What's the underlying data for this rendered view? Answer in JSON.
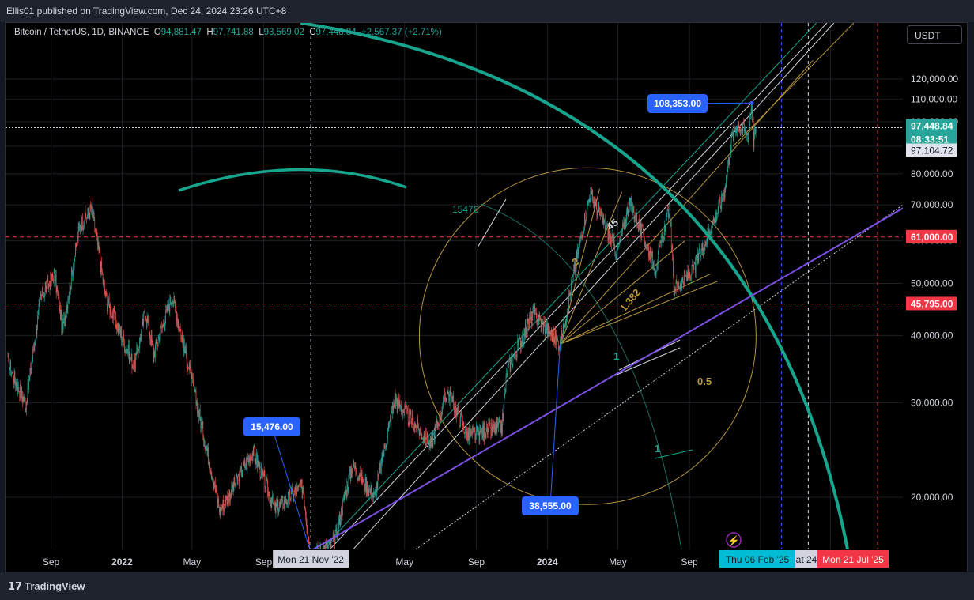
{
  "header": {
    "publish_line": "Ellis01 published on TradingView.com, Dec 24, 2024 23:26 UTC+8"
  },
  "footer": {
    "brand": "TradingView"
  },
  "legend": {
    "symbol": "Bitcoin / TetherUS, 1D, BINANCE",
    "o_label": "O",
    "o": "94,881.47",
    "h_label": "H",
    "h": "97,741.88",
    "l_label": "L",
    "l": "93,569.02",
    "c_label": "C",
    "c": "97,448.84",
    "change": "+2,567.37 (+2.71%)"
  },
  "currency_button": "USDT",
  "colors": {
    "up": "#26a69a",
    "down": "#ef5350",
    "teal_drawing": "#17a58e",
    "purple_line": "#7b4fe0",
    "gold": "#b8953c",
    "callout_blue": "#2962ff",
    "red_level": "#f23645",
    "cyan_date": "#00bcd4"
  },
  "chart_data": {
    "type": "candlestick",
    "timeframe": "1D",
    "y_axis": {
      "scale": "log",
      "ticks": [
        "120,000.00",
        "110,000.00",
        "100,000.00",
        "90,000.00",
        "80,000.00",
        "70,000.00",
        "60,000.00",
        "50,000.00",
        "40,000.00",
        "30,000.00",
        "20,000.00"
      ],
      "range": [
        17000,
        128000
      ]
    },
    "x_axis": {
      "ticks": [
        "Sep",
        "2022",
        "May",
        "Sep",
        "May",
        "Sep",
        "2024",
        "May",
        "Sep",
        "Jan",
        "May"
      ],
      "range": [
        "2021-06-19",
        "2025-09-01"
      ]
    },
    "price_path": [
      [
        "2021-06-19",
        35500
      ],
      [
        "2021-07-20",
        29800
      ],
      [
        "2021-08-14",
        47000
      ],
      [
        "2021-09-07",
        52000
      ],
      [
        "2021-09-21",
        41000
      ],
      [
        "2021-10-20",
        64000
      ],
      [
        "2021-11-10",
        69000
      ],
      [
        "2021-12-04",
        47000
      ],
      [
        "2022-01-22",
        35000
      ],
      [
        "2022-02-10",
        44500
      ],
      [
        "2022-02-24",
        37000
      ],
      [
        "2022-03-28",
        47500
      ],
      [
        "2022-05-12",
        29000
      ],
      [
        "2022-06-18",
        18900
      ],
      [
        "2022-08-14",
        24400
      ],
      [
        "2022-09-20",
        19000
      ],
      [
        "2022-11-07",
        21000
      ],
      [
        "2022-11-21",
        15476
      ],
      [
        "2022-12-31",
        16500
      ],
      [
        "2023-01-31",
        23000
      ],
      [
        "2023-03-10",
        20000
      ],
      [
        "2023-04-14",
        30500
      ],
      [
        "2023-06-15",
        25000
      ],
      [
        "2023-07-13",
        31500
      ],
      [
        "2023-08-18",
        26000
      ],
      [
        "2023-10-15",
        27000
      ],
      [
        "2023-10-24",
        34500
      ],
      [
        "2023-12-08",
        44000
      ],
      [
        "2024-01-23",
        38555
      ],
      [
        "2024-02-15",
        52000
      ],
      [
        "2024-03-14",
        73700
      ],
      [
        "2024-04-30",
        57000
      ],
      [
        "2024-05-21",
        71000
      ],
      [
        "2024-07-05",
        53500
      ],
      [
        "2024-07-29",
        69500
      ],
      [
        "2024-08-05",
        49000
      ],
      [
        "2024-09-06",
        52500
      ],
      [
        "2024-10-29",
        72500
      ],
      [
        "2024-11-13",
        93000
      ],
      [
        "2024-11-22",
        99500
      ],
      [
        "2024-12-10",
        94500
      ],
      [
        "2024-12-17",
        108353
      ],
      [
        "2024-12-20",
        92500
      ],
      [
        "2024-12-24",
        97448.84
      ]
    ],
    "annotations": {
      "callouts": [
        "108,353.00",
        "15,476.00",
        "38,555.00"
      ],
      "price_labels": [
        {
          "text": "97,448.84",
          "color": "#26a69a",
          "value": 97448.84
        },
        {
          "text": "08:33:51",
          "color": "#26a69a"
        },
        {
          "text": "97,104.72",
          "color": "#d1d4dc",
          "value": 97104.72
        },
        {
          "text": "61,000.00",
          "color": "#f23645",
          "value": 61000
        },
        {
          "text": "45,795.00",
          "color": "#f23645",
          "value": 45795
        }
      ],
      "date_labels": [
        "Mon 21 Nov '22",
        "Thu 06 Feb '25",
        "at 24",
        "Mon 21 Jul '25"
      ],
      "fib_labels": [
        "2",
        "1.382",
        "1",
        "0.5",
        "45",
        "15476",
        "1"
      ],
      "horizontal_levels": [
        61000,
        45795
      ],
      "current_price": 97448.84
    }
  }
}
